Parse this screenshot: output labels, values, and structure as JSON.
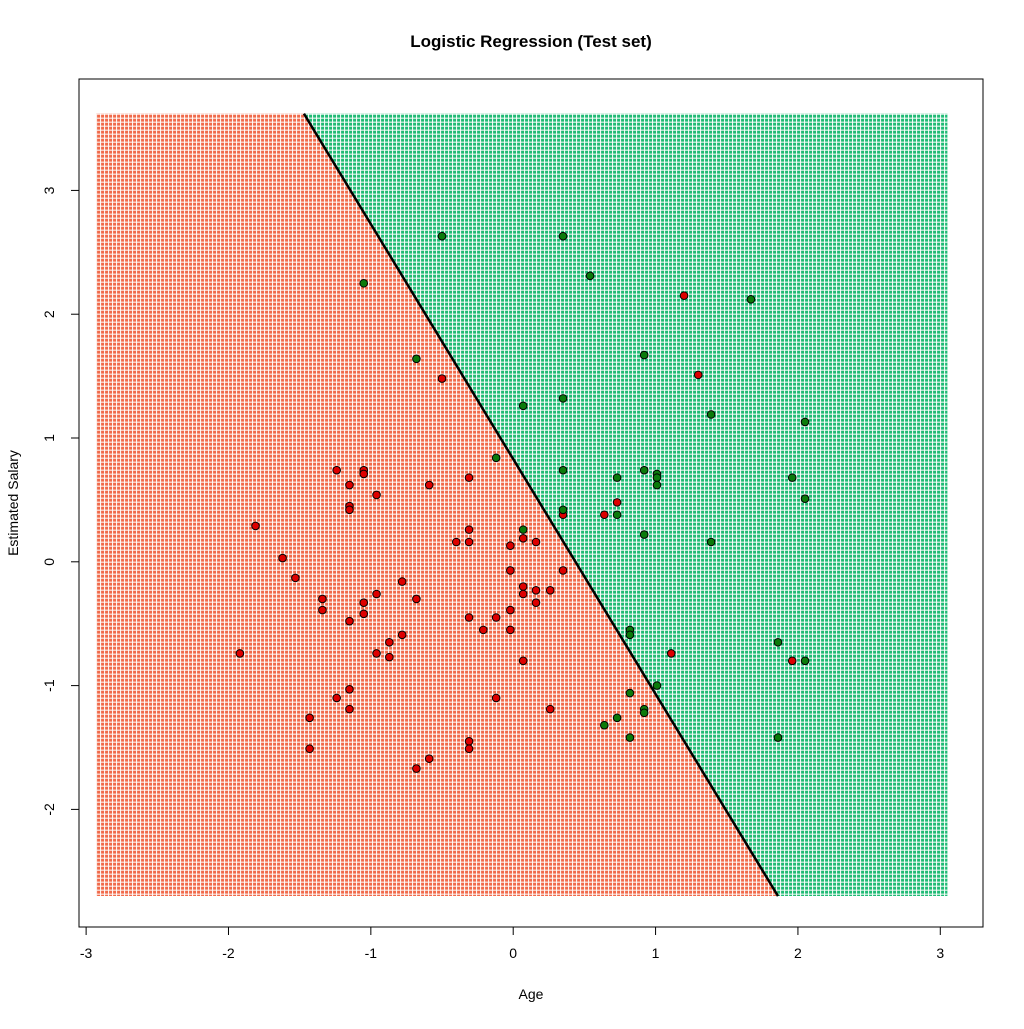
{
  "chart_data": {
    "type": "scatter",
    "title": "Logistic Regression (Test set)",
    "xlabel": "Age",
    "ylabel": "Estimated Salary",
    "xlim": [
      -3.05,
      3.3
    ],
    "ylim": [
      -2.95,
      3.9
    ],
    "x_ticks": [
      -3,
      -2,
      -1,
      0,
      1,
      2,
      3
    ],
    "y_ticks": [
      -2,
      -1,
      0,
      1,
      2,
      3
    ],
    "x_tick_labels": [
      "-3",
      "-2",
      "-1",
      "0",
      "1",
      "2",
      "3"
    ],
    "y_tick_labels": [
      "-2",
      "-1",
      "0",
      "1",
      "2",
      "3"
    ],
    "grid_extent": {
      "x": [
        -2.93,
        3.05
      ],
      "y": [
        -2.7,
        3.62
      ]
    },
    "decision_boundary": {
      "x_at_top": -1.47,
      "x_at_bottom": 1.86
    },
    "region_colors": {
      "class_0": "#f06a4a",
      "class_1": "#1fba74",
      "grid_line": "#ffffff"
    },
    "point_colors": {
      "class_0": "#dd0000",
      "class_1": "#0b7a0b",
      "outline": "#000000"
    },
    "grid": false,
    "legend": "none",
    "series": [
      {
        "class": 0,
        "color": "#dd0000",
        "points": [
          [
            -1.92,
            -0.74
          ],
          [
            -1.81,
            0.29
          ],
          [
            -1.62,
            0.03
          ],
          [
            -1.53,
            -0.13
          ],
          [
            -1.43,
            -1.26
          ],
          [
            -1.43,
            -1.51
          ],
          [
            -1.34,
            -0.3
          ],
          [
            -1.34,
            -0.39
          ],
          [
            -1.24,
            0.74
          ],
          [
            -1.24,
            -1.1
          ],
          [
            -1.15,
            0.62
          ],
          [
            -1.15,
            0.45
          ],
          [
            -1.15,
            0.42
          ],
          [
            -1.15,
            -0.48
          ],
          [
            -1.15,
            -1.03
          ],
          [
            -1.15,
            -1.19
          ],
          [
            -1.05,
            0.74
          ],
          [
            -1.05,
            0.71
          ],
          [
            -1.05,
            -0.33
          ],
          [
            -1.05,
            -0.42
          ],
          [
            -0.96,
            0.54
          ],
          [
            -0.96,
            -0.26
          ],
          [
            -0.96,
            -0.74
          ],
          [
            -0.87,
            -0.65
          ],
          [
            -0.87,
            -0.77
          ],
          [
            -0.78,
            -0.16
          ],
          [
            -0.78,
            -0.59
          ],
          [
            -0.68,
            -0.3
          ],
          [
            -0.68,
            -1.67
          ],
          [
            -0.59,
            0.62
          ],
          [
            -0.59,
            -1.59
          ],
          [
            -0.5,
            1.48
          ],
          [
            -0.4,
            0.16
          ],
          [
            -0.31,
            0.68
          ],
          [
            -0.31,
            0.26
          ],
          [
            -0.31,
            0.16
          ],
          [
            -0.31,
            -0.45
          ],
          [
            -0.31,
            -1.45
          ],
          [
            -0.31,
            -1.51
          ],
          [
            -0.21,
            -0.55
          ],
          [
            -0.12,
            -0.45
          ],
          [
            -0.12,
            -1.1
          ],
          [
            -0.02,
            0.13
          ],
          [
            -0.02,
            -0.07
          ],
          [
            -0.02,
            -0.39
          ],
          [
            -0.02,
            -0.55
          ],
          [
            0.07,
            0.19
          ],
          [
            0.07,
            -0.2
          ],
          [
            0.07,
            -0.26
          ],
          [
            0.07,
            -0.8
          ],
          [
            0.16,
            0.16
          ],
          [
            0.16,
            -0.23
          ],
          [
            0.16,
            -0.33
          ],
          [
            0.26,
            -0.23
          ],
          [
            0.26,
            -1.19
          ],
          [
            0.35,
            0.38
          ],
          [
            0.35,
            -0.07
          ],
          [
            0.64,
            0.38
          ],
          [
            0.73,
            0.48
          ],
          [
            1.11,
            -0.74
          ],
          [
            1.2,
            2.15
          ],
          [
            1.3,
            1.51
          ],
          [
            1.96,
            -0.8
          ]
        ]
      },
      {
        "class": 1,
        "color": "#0b7a0b",
        "points": [
          [
            -1.05,
            2.25
          ],
          [
            -0.68,
            1.64
          ],
          [
            -0.5,
            2.63
          ],
          [
            -0.12,
            0.84
          ],
          [
            0.07,
            1.26
          ],
          [
            0.07,
            0.26
          ],
          [
            0.35,
            2.63
          ],
          [
            0.35,
            1.32
          ],
          [
            0.35,
            0.74
          ],
          [
            0.35,
            0.42
          ],
          [
            0.54,
            2.31
          ],
          [
            0.64,
            -1.32
          ],
          [
            0.73,
            0.68
          ],
          [
            0.73,
            0.38
          ],
          [
            0.73,
            -1.26
          ],
          [
            0.82,
            -0.55
          ],
          [
            0.82,
            -0.59
          ],
          [
            0.82,
            -1.06
          ],
          [
            0.82,
            -1.42
          ],
          [
            0.92,
            1.67
          ],
          [
            0.92,
            0.74
          ],
          [
            0.92,
            0.22
          ],
          [
            0.92,
            -1.19
          ],
          [
            0.92,
            -1.22
          ],
          [
            1.01,
            0.71
          ],
          [
            1.01,
            0.68
          ],
          [
            1.01,
            0.62
          ],
          [
            1.01,
            -1.0
          ],
          [
            1.39,
            1.19
          ],
          [
            1.39,
            0.16
          ],
          [
            1.67,
            2.12
          ],
          [
            1.86,
            -0.65
          ],
          [
            1.86,
            -1.42
          ],
          [
            1.96,
            0.68
          ],
          [
            2.05,
            1.13
          ],
          [
            2.05,
            0.51
          ],
          [
            2.05,
            -0.8
          ]
        ]
      }
    ]
  }
}
